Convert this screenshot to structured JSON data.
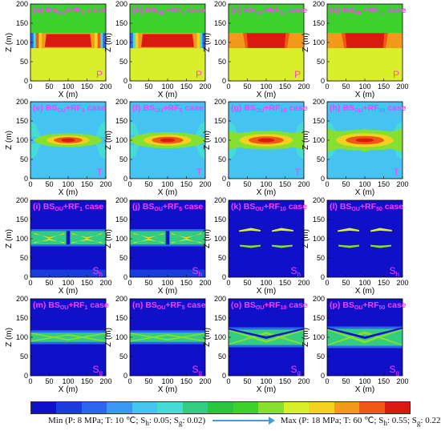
{
  "figure": {
    "panels": [
      {
        "label": "(a) BS",
        "sub": "OU",
        "tail": "+RF",
        "tsub": "1",
        "case": " case",
        "corner": "P",
        "corner_sub": ""
      },
      {
        "label": "(b) BS",
        "sub": "OU",
        "tail": "+RF",
        "tsub": "5",
        "case": " case",
        "corner": "P",
        "corner_sub": ""
      },
      {
        "label": "(c) BS",
        "sub": "OU",
        "tail": "+RF",
        "tsub": "10",
        "case": " case",
        "corner": "P",
        "corner_sub": ""
      },
      {
        "label": "(d) BS",
        "sub": "OU",
        "tail": "+RF",
        "tsub": "50",
        "case": " case",
        "corner": "P",
        "corner_sub": ""
      },
      {
        "label": "(e) BS",
        "sub": "OU",
        "tail": "+RF",
        "tsub": "1",
        "case": " case",
        "corner": "T",
        "corner_sub": ""
      },
      {
        "label": "(f) BS",
        "sub": "OU",
        "tail": "+RF",
        "tsub": "5",
        "case": " case",
        "corner": "T",
        "corner_sub": ""
      },
      {
        "label": "(g) BS",
        "sub": "OU",
        "tail": "+RF",
        "tsub": "10",
        "case": " case",
        "corner": "T",
        "corner_sub": ""
      },
      {
        "label": "(h) BS",
        "sub": "OU",
        "tail": "+RF",
        "tsub": "50",
        "case": " case",
        "corner": "T",
        "corner_sub": ""
      },
      {
        "label": "(i) BS",
        "sub": "OU",
        "tail": "+RF",
        "tsub": "1",
        "case": " case",
        "corner": "S",
        "corner_sub": "h"
      },
      {
        "label": "(j) BS",
        "sub": "OU",
        "tail": "+RF",
        "tsub": "5",
        "case": " case",
        "corner": "S",
        "corner_sub": "h"
      },
      {
        "label": "(k) BS",
        "sub": "OU",
        "tail": "+RF",
        "tsub": "10",
        "case": " case",
        "corner": "S",
        "corner_sub": "h"
      },
      {
        "label": "(l) BS",
        "sub": "OU",
        "tail": "+RF",
        "tsub": "50",
        "case": " case",
        "corner": "S",
        "corner_sub": "h"
      },
      {
        "label": "(m) BS",
        "sub": "OU",
        "tail": "+RF",
        "tsub": "1",
        "case": " case",
        "corner": "S",
        "corner_sub": "g"
      },
      {
        "label": "(n) BS",
        "sub": "OU",
        "tail": "+RF",
        "tsub": "5",
        "case": " case",
        "corner": "S",
        "corner_sub": "g"
      },
      {
        "label": "(o) BS",
        "sub": "OU",
        "tail": "+RF",
        "tsub": "10",
        "case": " case",
        "corner": "S",
        "corner_sub": "g"
      },
      {
        "label": "(p) BS",
        "sub": "OU",
        "tail": "+RF",
        "tsub": "50",
        "case": " case",
        "corner": "S",
        "corner_sub": "g"
      }
    ],
    "legend": {
      "min_text": "Min (P: 8 MPa; T: 10 ℃; S",
      "min_h": "h",
      "min_mid": ": 0.05; S",
      "min_g": "g",
      "min_end": ": 0.02)",
      "max_text": "Max (P: 18 MPa; T: 60 ℃; S",
      "max_h": "h",
      "max_mid": ": 0.55; S",
      "max_g": "g",
      "max_end": ": 0.22)"
    },
    "colors": {
      "scale": [
        "#0f10c8",
        "#1a3cdc",
        "#2a66f0",
        "#3a98f2",
        "#45c4f2",
        "#46dcd6",
        "#33cc80",
        "#2ac63e",
        "#3cd22e",
        "#86e030",
        "#d8ef2a",
        "#f2d21e",
        "#f29a1c",
        "#ee5a16",
        "#d81a10"
      ],
      "title": "#ff3cff",
      "corner": "#ff3cff"
    }
  },
  "chart_data": [
    {
      "type": "heatmap",
      "title": "(a) BSOU+RF1 case",
      "variable": "P",
      "xlabel": "X (m)",
      "ylabel": "Z (m)",
      "xlim": [
        0,
        200
      ],
      "ylim": [
        0,
        200
      ],
      "xticks": [
        0,
        50,
        100,
        150,
        200
      ],
      "yticks": [
        0,
        50,
        100,
        150,
        200
      ]
    },
    {
      "type": "heatmap",
      "title": "(b) BSOU+RF5 case",
      "variable": "P",
      "xlabel": "X (m)",
      "ylabel": "Z (m)",
      "xlim": [
        0,
        200
      ],
      "ylim": [
        0,
        200
      ],
      "xticks": [
        0,
        50,
        100,
        150,
        200
      ],
      "yticks": [
        0,
        50,
        100,
        150,
        200
      ]
    },
    {
      "type": "heatmap",
      "title": "(c) BSOU+RF10 case",
      "variable": "P",
      "xlabel": "X (m)",
      "ylabel": "Z (m)",
      "xlim": [
        0,
        200
      ],
      "ylim": [
        0,
        200
      ],
      "xticks": [
        0,
        50,
        100,
        150,
        200
      ],
      "yticks": [
        0,
        50,
        100,
        150,
        200
      ]
    },
    {
      "type": "heatmap",
      "title": "(d) BSOU+RF50 case",
      "variable": "P",
      "xlabel": "X (m)",
      "ylabel": "Z (m)",
      "xlim": [
        0,
        200
      ],
      "ylim": [
        0,
        200
      ],
      "xticks": [
        0,
        50,
        100,
        150,
        200
      ],
      "yticks": [
        0,
        50,
        100,
        150,
        200
      ]
    },
    {
      "type": "heatmap",
      "title": "(e) BSOU+RF1 case",
      "variable": "T",
      "xlabel": "X (m)",
      "ylabel": "Z (m)",
      "xlim": [
        0,
        200
      ],
      "ylim": [
        0,
        200
      ],
      "xticks": [
        0,
        50,
        100,
        150,
        200
      ],
      "yticks": [
        0,
        50,
        100,
        150,
        200
      ]
    },
    {
      "type": "heatmap",
      "title": "(f) BSOU+RF5 case",
      "variable": "T",
      "xlabel": "X (m)",
      "ylabel": "Z (m)",
      "xlim": [
        0,
        200
      ],
      "ylim": [
        0,
        200
      ],
      "xticks": [
        0,
        50,
        100,
        150,
        200
      ],
      "yticks": [
        0,
        50,
        100,
        150,
        200
      ]
    },
    {
      "type": "heatmap",
      "title": "(g) BSOU+RF10 case",
      "variable": "T",
      "xlabel": "X (m)",
      "ylabel": "Z (m)",
      "xlim": [
        0,
        200
      ],
      "ylim": [
        0,
        200
      ],
      "xticks": [
        0,
        50,
        100,
        150,
        200
      ],
      "yticks": [
        0,
        50,
        100,
        150,
        200
      ]
    },
    {
      "type": "heatmap",
      "title": "(h) BSOU+RF50 case",
      "variable": "T",
      "xlabel": "X (m)",
      "ylabel": "Z (m)",
      "xlim": [
        0,
        200
      ],
      "ylim": [
        0,
        200
      ],
      "xticks": [
        0,
        50,
        100,
        150,
        200
      ],
      "yticks": [
        0,
        50,
        100,
        150,
        200
      ]
    },
    {
      "type": "heatmap",
      "title": "(i) BSOU+RF1 case",
      "variable": "Sh",
      "xlabel": "X (m)",
      "ylabel": "Z (m)",
      "xlim": [
        0,
        200
      ],
      "ylim": [
        0,
        200
      ],
      "xticks": [
        0,
        50,
        100,
        150,
        200
      ],
      "yticks": [
        0,
        50,
        100,
        150,
        200
      ]
    },
    {
      "type": "heatmap",
      "title": "(j) BSOU+RF5 case",
      "variable": "Sh",
      "xlabel": "X (m)",
      "ylabel": "Z (m)",
      "xlim": [
        0,
        200
      ],
      "ylim": [
        0,
        200
      ],
      "xticks": [
        0,
        50,
        100,
        150,
        200
      ],
      "yticks": [
        0,
        50,
        100,
        150,
        200
      ]
    },
    {
      "type": "heatmap",
      "title": "(k) BSOU+RF10 case",
      "variable": "Sh",
      "xlabel": "X (m)",
      "ylabel": "Z (m)",
      "xlim": [
        0,
        200
      ],
      "ylim": [
        0,
        200
      ],
      "xticks": [
        0,
        50,
        100,
        150,
        200
      ],
      "yticks": [
        0,
        50,
        100,
        150,
        200
      ]
    },
    {
      "type": "heatmap",
      "title": "(l) BSOU+RF50 case",
      "variable": "Sh",
      "xlabel": "X (m)",
      "ylabel": "Z (m)",
      "xlim": [
        0,
        200
      ],
      "ylim": [
        0,
        200
      ],
      "xticks": [
        0,
        50,
        100,
        150,
        200
      ],
      "yticks": [
        0,
        50,
        100,
        150,
        200
      ]
    },
    {
      "type": "heatmap",
      "title": "(m) BSOU+RF1 case",
      "variable": "Sg",
      "xlabel": "X (m)",
      "ylabel": "Z (m)",
      "xlim": [
        0,
        200
      ],
      "ylim": [
        0,
        200
      ],
      "xticks": [
        0,
        50,
        100,
        150,
        200
      ],
      "yticks": [
        0,
        50,
        100,
        150,
        200
      ]
    },
    {
      "type": "heatmap",
      "title": "(n) BSOU+RF5 case",
      "variable": "Sg",
      "xlabel": "X (m)",
      "ylabel": "Z (m)",
      "xlim": [
        0,
        200
      ],
      "ylim": [
        0,
        200
      ],
      "xticks": [
        0,
        50,
        100,
        150,
        200
      ],
      "yticks": [
        0,
        50,
        100,
        150,
        200
      ]
    },
    {
      "type": "heatmap",
      "title": "(o) BSOU+RF10 case",
      "variable": "Sg",
      "xlabel": "X (m)",
      "ylabel": "Z (m)",
      "xlim": [
        0,
        200
      ],
      "ylim": [
        0,
        200
      ],
      "xticks": [
        0,
        50,
        100,
        150,
        200
      ],
      "yticks": [
        0,
        50,
        100,
        150,
        200
      ]
    },
    {
      "type": "heatmap",
      "title": "(p) BSOU+RF50 case",
      "variable": "Sg",
      "xlabel": "X (m)",
      "ylabel": "Z (m)",
      "xlim": [
        0,
        200
      ],
      "ylim": [
        0,
        200
      ],
      "xticks": [
        0,
        50,
        100,
        150,
        200
      ],
      "yticks": [
        0,
        50,
        100,
        150,
        200
      ]
    }
  ]
}
